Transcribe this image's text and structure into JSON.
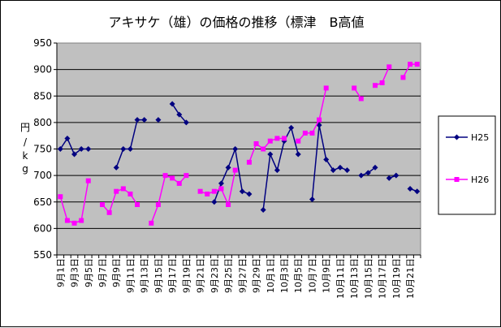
{
  "chart_data": {
    "type": "line",
    "title": "アキサケ（雄）の価格の推移（標津　B高値",
    "ylabel": [
      "円",
      "/",
      "k",
      "g"
    ],
    "xlabel": "",
    "ylim": [
      550,
      950
    ],
    "yticks": [
      550,
      600,
      650,
      700,
      750,
      800,
      850,
      900,
      950
    ],
    "grid": true,
    "legend_position": "right",
    "categories": [
      "9月1日",
      "9月2日",
      "9月3日",
      "9月4日",
      "9月5日",
      "9月6日",
      "9月7日",
      "9月8日",
      "9月9日",
      "9月10日",
      "9月11日",
      "9月12日",
      "9月13日",
      "9月14日",
      "9月15日",
      "9月16日",
      "9月17日",
      "9月18日",
      "9月19日",
      "9月20日",
      "9月21日",
      "9月22日",
      "9月23日",
      "9月24日",
      "9月25日",
      "9月26日",
      "9月27日",
      "9月28日",
      "9月29日",
      "9月30日",
      "10月1日",
      "10月2日",
      "10月3日",
      "10月4日",
      "10月5日",
      "10月6日",
      "10月7日",
      "10月8日",
      "10月9日",
      "10月10日",
      "10月11日",
      "10月12日",
      "10月13日",
      "10月14日",
      "10月15日",
      "10月16日",
      "10月17日",
      "10月18日",
      "10月19日",
      "10月20日",
      "10月21日",
      "10月22日"
    ],
    "labeled_every": 2,
    "series": [
      {
        "name": "H25",
        "color": "#000080",
        "marker": "diamond",
        "values": [
          750,
          770,
          740,
          750,
          750,
          null,
          null,
          null,
          715,
          750,
          750,
          805,
          805,
          null,
          805,
          null,
          835,
          815,
          800,
          null,
          null,
          null,
          650,
          685,
          715,
          750,
          670,
          665,
          null,
          635,
          740,
          710,
          765,
          790,
          740,
          null,
          655,
          795,
          730,
          710,
          715,
          710,
          null,
          700,
          705,
          715,
          null,
          695,
          700,
          null,
          675,
          670
        ]
      },
      {
        "name": "H26",
        "color": "#ff00ff",
        "marker": "square",
        "values": [
          660,
          615,
          610,
          615,
          690,
          null,
          645,
          630,
          670,
          675,
          665,
          645,
          null,
          610,
          645,
          700,
          695,
          685,
          700,
          null,
          670,
          665,
          670,
          675,
          645,
          710,
          null,
          725,
          760,
          750,
          765,
          770,
          770,
          null,
          765,
          780,
          780,
          805,
          865,
          null,
          null,
          null,
          865,
          845,
          null,
          870,
          875,
          905,
          null,
          885,
          910,
          910
        ]
      }
    ]
  }
}
